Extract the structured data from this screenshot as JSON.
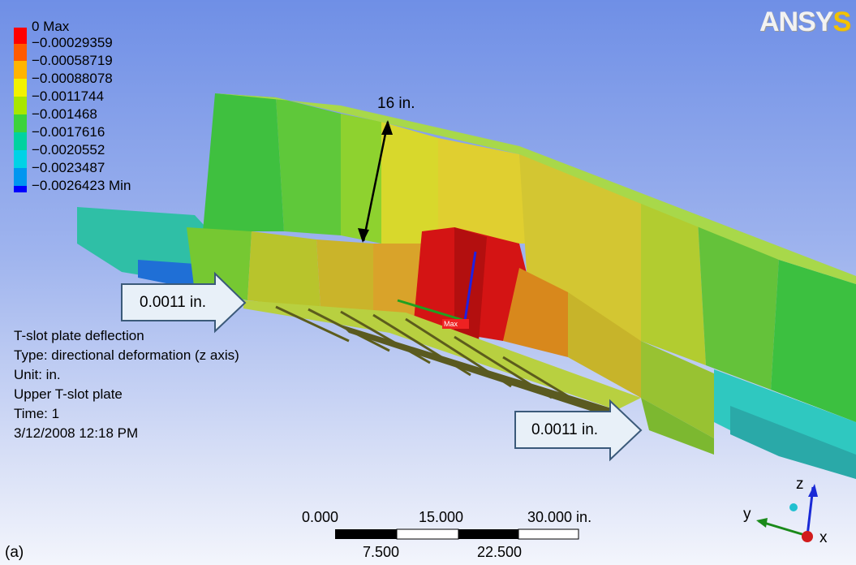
{
  "logo": {
    "text_main": "ANSY",
    "text_accent": "S"
  },
  "legend": {
    "items": [
      {
        "label": "0 Max",
        "color": "#ff0000"
      },
      {
        "label": "−0.00029359",
        "color": "#ff5a00"
      },
      {
        "label": "−0.00058719",
        "color": "#ffb400"
      },
      {
        "label": "−0.00088078",
        "color": "#f2f200"
      },
      {
        "label": "−0.0011744",
        "color": "#a8e600"
      },
      {
        "label": "−0.001468",
        "color": "#3cd23c"
      },
      {
        "label": "−0.0017616",
        "color": "#00d2a0"
      },
      {
        "label": "−0.0020552",
        "color": "#00d2e6"
      },
      {
        "label": "−0.0023487",
        "color": "#0096f0"
      },
      {
        "label": "−0.0026423 Min",
        "color": "#0000ff"
      }
    ]
  },
  "info": {
    "title": "T-slot plate deflection",
    "type": "Type: directional deformation (z axis)",
    "unit": "Unit: in.",
    "body": "Upper T-slot plate",
    "time": "Time: 1",
    "date": "3/12/2008 12:18 PM"
  },
  "annotations": {
    "dimension": "16 in.",
    "callout_left": "0.0011 in.",
    "callout_right": "0.0011 in.",
    "max_marker": "Max"
  },
  "scale_bar": {
    "top_labels": [
      "0.000",
      "15.000",
      "30.000 in."
    ],
    "bottom_labels": [
      "7.500",
      "22.500"
    ]
  },
  "triad": {
    "z": "z",
    "y": "y",
    "x": "x"
  },
  "panel_tag": "(a)"
}
